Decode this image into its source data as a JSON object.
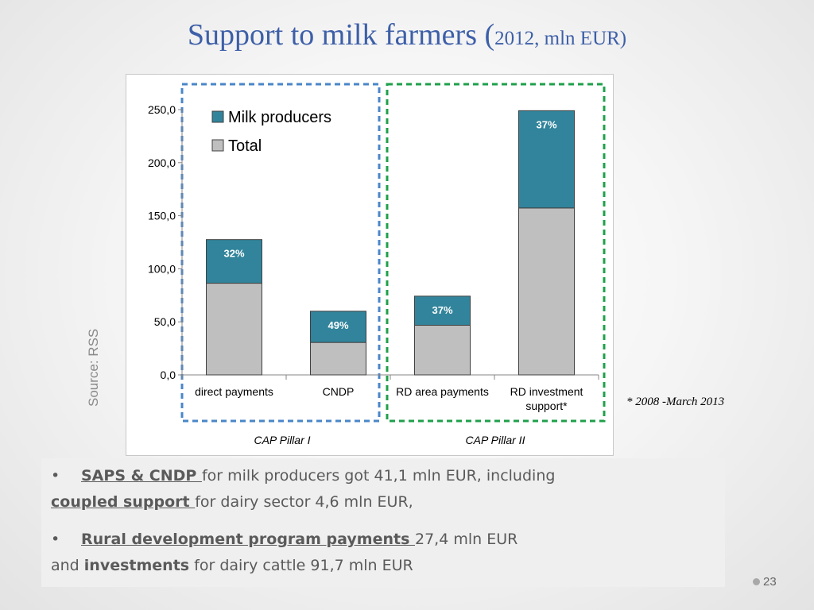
{
  "title": {
    "main": "Support to milk farmers (",
    "sub": "2012, mln EUR)"
  },
  "source_label": "Source: RSS",
  "footnote": "* 2008 -March 2013",
  "page_number": "23",
  "colors": {
    "title": "#3d5fa8",
    "milk_producers": "#31849b",
    "total": "#bfbfbf",
    "pillar_1_box": "#4a86c8",
    "pillar_2_box": "#1fa04b"
  },
  "chart_data": {
    "type": "bar",
    "categories": [
      "direct payments",
      "CNDP",
      "RD area payments",
      "RD investment support*"
    ],
    "category_lines": [
      [
        "direct payments"
      ],
      [
        "CNDP"
      ],
      [
        "RD area payments"
      ],
      [
        "RD investment",
        "support*"
      ]
    ],
    "series": [
      {
        "name": "Total",
        "values": [
          86.4,
          30.6,
          46.8,
          157.3
        ]
      },
      {
        "name": "Milk producers",
        "values": [
          41.1,
          29.4,
          27.4,
          91.7
        ]
      }
    ],
    "data_labels": [
      "32%",
      "49%",
      "37%",
      "37%"
    ],
    "stacked": true,
    "ylim": [
      0,
      250
    ],
    "yticks": [
      "0,0",
      "50,0",
      "100,0",
      "150,0",
      "200,0",
      "250,0"
    ],
    "ytick_values": [
      0,
      50,
      100,
      150,
      200,
      250
    ],
    "legend": {
      "position": "top-left",
      "items": [
        "Milk producers",
        "Total"
      ]
    },
    "groups": [
      {
        "label": "CAP Pillar I",
        "categories": [
          "direct payments",
          "CNDP"
        ]
      },
      {
        "label": "CAP Pillar II",
        "categories": [
          "RD area payments",
          "RD investment support*"
        ]
      }
    ],
    "xlabel": "",
    "ylabel": ""
  },
  "text_box": {
    "p1": {
      "bullet": "•",
      "saps": "SAPS & CNDP ",
      "rest1": "for milk producers got 41,1 mln EUR, including",
      "coupled": "coupled support ",
      "rest2": "for dairy sector 4,6 mln EUR,"
    },
    "p2": {
      "bullet": "•",
      "rdp": "Rural development program ",
      "payments": "payments ",
      "amount": "27,4 mln EUR",
      "and": "and ",
      "investments": "investments",
      "rest": " for dairy cattle 91,7 mln EUR"
    }
  }
}
